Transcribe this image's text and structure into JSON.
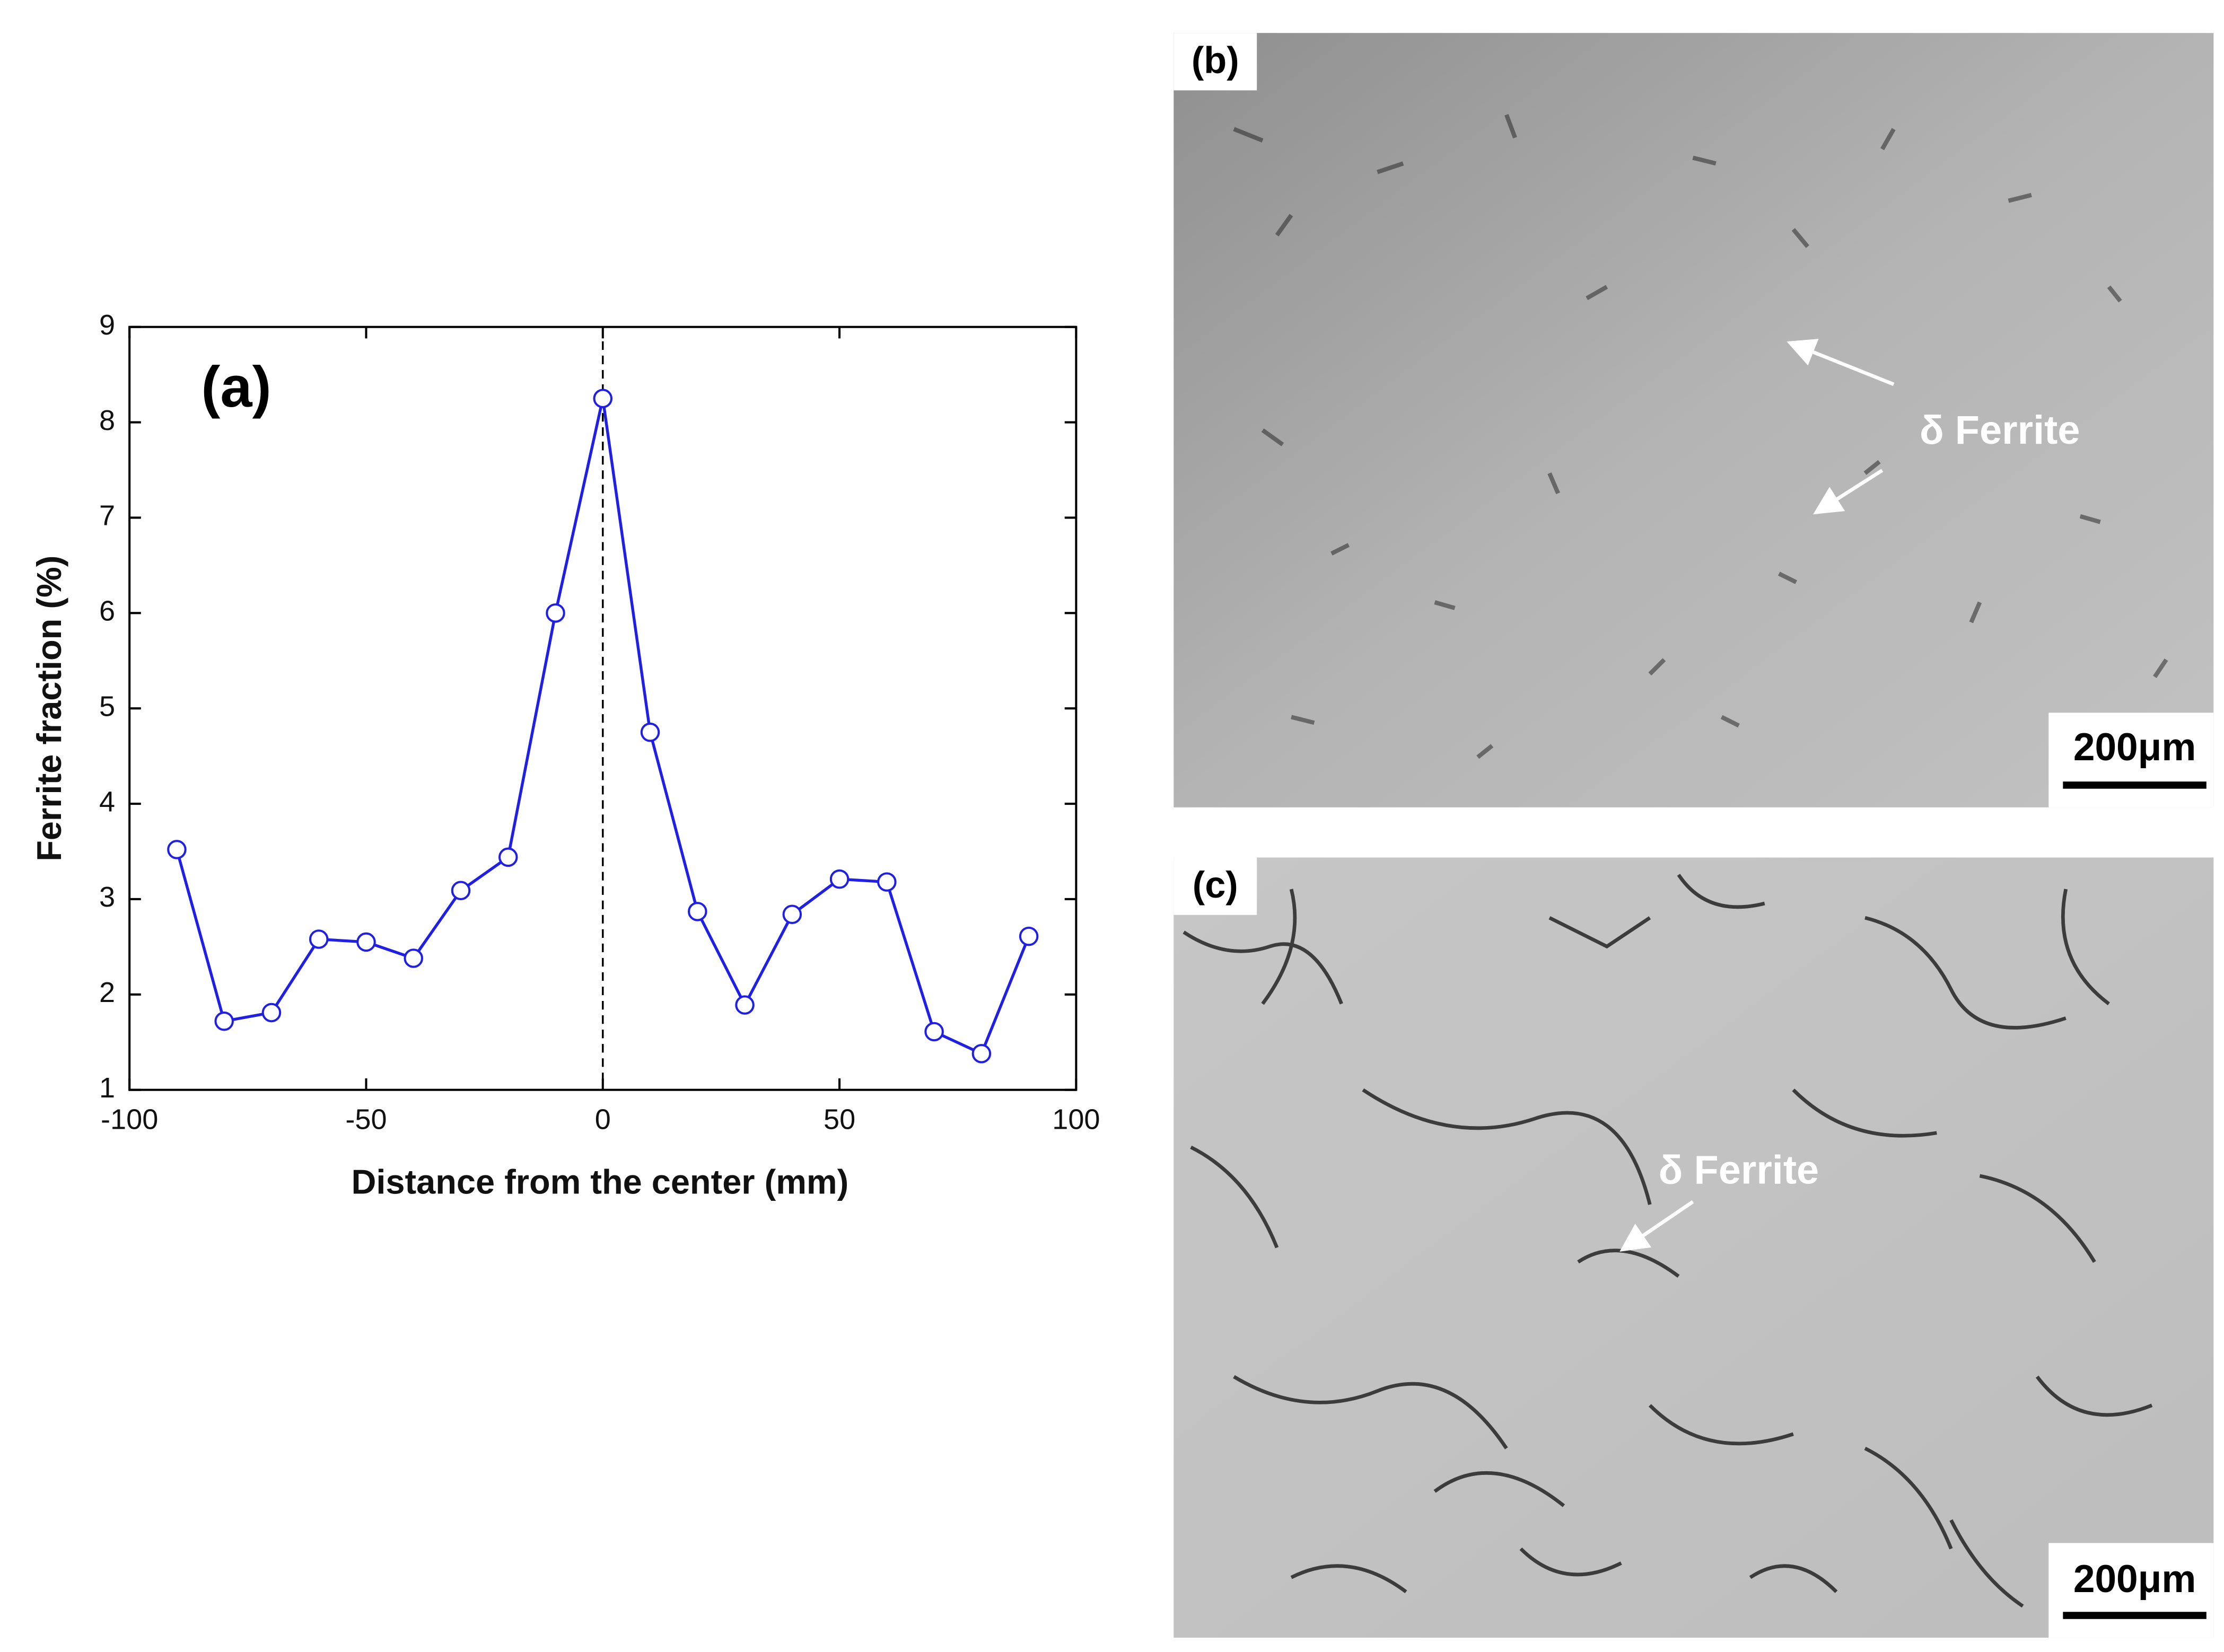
{
  "chart_data": {
    "type": "line",
    "panel_label": "(a)",
    "xlabel": "Distance from the center (mm)",
    "ylabel": "Ferrite fraction (%)",
    "x": [
      -90,
      -80,
      -70,
      -60,
      -50,
      -40,
      -30,
      -20,
      -10,
      0,
      10,
      20,
      30,
      40,
      50,
      60,
      70,
      80,
      90
    ],
    "values": [
      3.52,
      1.72,
      1.81,
      2.58,
      2.55,
      2.38,
      3.09,
      3.44,
      6.0,
      8.25,
      4.75,
      2.87,
      1.89,
      2.84,
      3.21,
      3.18,
      1.61,
      1.38,
      2.61
    ],
    "color": "#1f1fe6",
    "markers": true,
    "xlim": [
      -100,
      100
    ],
    "xticks": [
      -100,
      -50,
      0,
      50,
      100
    ],
    "ylim": [
      1,
      9
    ],
    "yticks": [
      1,
      2,
      3,
      4,
      5,
      6,
      7,
      8,
      9
    ],
    "vline_x": 0
  },
  "micrographs": [
    {
      "label": "(b)",
      "annotation": "δ Ferrite",
      "scale_bar": "200μm"
    },
    {
      "label": "(c)",
      "annotation": "δ Ferrite",
      "scale_bar": "200μm"
    }
  ]
}
